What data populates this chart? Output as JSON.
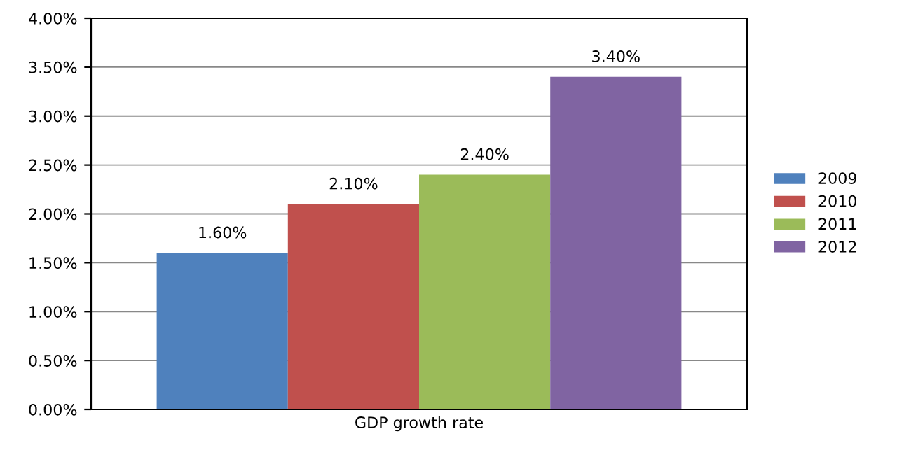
{
  "chart_data": {
    "type": "bar",
    "categories": [
      "GDP growth rate"
    ],
    "series": [
      {
        "name": "2009",
        "color": "#4f81bd",
        "values": [
          1.6
        ],
        "value_labels": [
          "1.60%"
        ]
      },
      {
        "name": "2010",
        "color": "#c0504d",
        "values": [
          2.1
        ],
        "value_labels": [
          "2.10%"
        ]
      },
      {
        "name": "2011",
        "color": "#9bbb59",
        "values": [
          2.4
        ],
        "value_labels": [
          "2.40%"
        ]
      },
      {
        "name": "2012",
        "color": "#8064a2",
        "values": [
          3.4
        ],
        "value_labels": [
          "3.40%"
        ]
      }
    ],
    "ylim": [
      0,
      4
    ],
    "yticks": [
      {
        "value": 0,
        "label": "0.00%"
      },
      {
        "value": 0.5,
        "label": "0.50%"
      },
      {
        "value": 1,
        "label": "1.00%"
      },
      {
        "value": 1.5,
        "label": "1.50%"
      },
      {
        "value": 2,
        "label": "2.00%"
      },
      {
        "value": 2.5,
        "label": "2.50%"
      },
      {
        "value": 3,
        "label": "3.00%"
      },
      {
        "value": 3.5,
        "label": "3.50%"
      },
      {
        "value": 4,
        "label": "4.00%"
      }
    ],
    "grid": "y",
    "legend": "right"
  }
}
